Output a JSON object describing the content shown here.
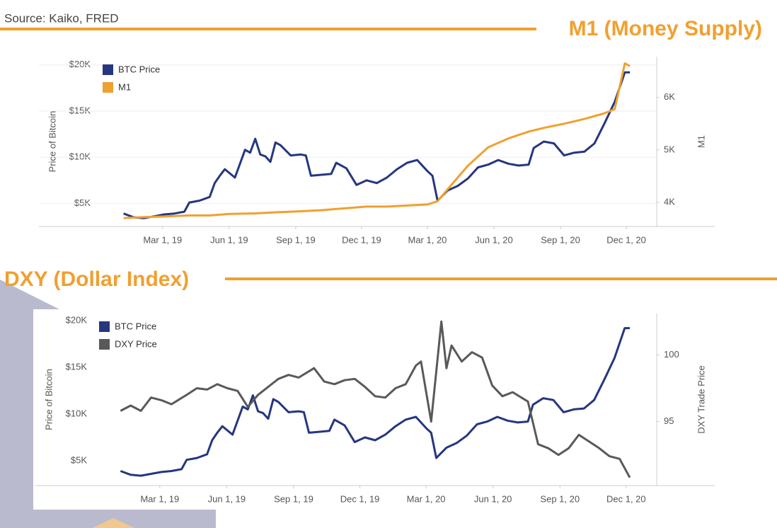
{
  "source": "Source: Kaiko, FRED",
  "chart_data": [
    {
      "type": "line",
      "title": "M1 (Money Supply)",
      "ylabel": "Price of Bitcoin",
      "y2label": "M1",
      "xlim": [
        "2018-09-11",
        "2021-01-12"
      ],
      "xticks": [
        {
          "value": "2019-03-01",
          "label": "Mar 1, 19"
        },
        {
          "value": "2019-06-01",
          "label": "Jun 1, 19"
        },
        {
          "value": "2019-09-01",
          "label": "Sep 1, 19"
        },
        {
          "value": "2019-12-01",
          "label": "Dec 1, 19"
        },
        {
          "value": "2020-03-01",
          "label": "Mar 1, 20"
        },
        {
          "value": "2020-06-01",
          "label": "Jun 1, 20"
        },
        {
          "value": "2020-09-01",
          "label": "Sep 1, 20"
        },
        {
          "value": "2020-12-01",
          "label": "Dec 1, 20"
        }
      ],
      "ylim": [
        2500,
        20900
      ],
      "yticks": [
        {
          "value": 5000,
          "label": "$5K"
        },
        {
          "value": 10000,
          "label": "$10K"
        },
        {
          "value": 15000,
          "label": "$15K"
        },
        {
          "value": 20000,
          "label": "$20K"
        }
      ],
      "y2lim": [
        3540,
        6780
      ],
      "y2ticks": [
        {
          "value": 4000,
          "label": "4K"
        },
        {
          "value": 5000,
          "label": "5K"
        },
        {
          "value": 6000,
          "label": "6K"
        }
      ],
      "grid": true,
      "legend": "top-left",
      "series": [
        {
          "name": "BTC Price",
          "color": "#26367f",
          "x": [
            "2019-01-06",
            "2019-01-20",
            "2019-02-03",
            "2019-02-17",
            "2019-03-03",
            "2019-03-17",
            "2019-03-31",
            "2019-04-07",
            "2019-04-21",
            "2019-05-05",
            "2019-05-12",
            "2019-05-19",
            "2019-05-26",
            "2019-06-09",
            "2019-06-23",
            "2019-06-30",
            "2019-07-07",
            "2019-07-14",
            "2019-07-21",
            "2019-07-28",
            "2019-08-04",
            "2019-08-11",
            "2019-08-25",
            "2019-09-08",
            "2019-09-15",
            "2019-09-22",
            "2019-10-06",
            "2019-10-20",
            "2019-10-27",
            "2019-11-10",
            "2019-11-24",
            "2019-12-08",
            "2019-12-22",
            "2020-01-05",
            "2020-01-19",
            "2020-02-02",
            "2020-02-16",
            "2020-03-01",
            "2020-03-08",
            "2020-03-15",
            "2020-03-29",
            "2020-04-12",
            "2020-04-26",
            "2020-05-10",
            "2020-05-24",
            "2020-06-07",
            "2020-06-21",
            "2020-07-05",
            "2020-07-19",
            "2020-07-26",
            "2020-08-09",
            "2020-08-23",
            "2020-09-06",
            "2020-09-20",
            "2020-10-04",
            "2020-10-18",
            "2020-11-01",
            "2020-11-15",
            "2020-11-29",
            "2020-12-06"
          ],
          "values": [
            3900,
            3500,
            3400,
            3600,
            3800,
            3900,
            4100,
            5100,
            5300,
            5700,
            7200,
            8000,
            8700,
            7800,
            10800,
            10500,
            12000,
            10300,
            10100,
            9500,
            11600,
            11300,
            10200,
            10300,
            10200,
            8000,
            8100,
            8200,
            9400,
            8800,
            7000,
            7500,
            7200,
            7800,
            8700,
            9400,
            9700,
            8500,
            8000,
            5300,
            6400,
            6900,
            7700,
            8900,
            9200,
            9700,
            9300,
            9100,
            9200,
            11000,
            11700,
            11500,
            10200,
            10500,
            10600,
            11500,
            13700,
            16000,
            19200,
            19200
          ]
        },
        {
          "name": "M1",
          "color": "#f0a030",
          "axis": "y2",
          "x": [
            "2019-01-06",
            "2019-02-03",
            "2019-03-03",
            "2019-04-07",
            "2019-05-05",
            "2019-06-02",
            "2019-07-07",
            "2019-08-04",
            "2019-09-08",
            "2019-10-06",
            "2019-11-10",
            "2019-12-08",
            "2020-01-05",
            "2020-02-02",
            "2020-03-01",
            "2020-03-15",
            "2020-03-29",
            "2020-04-26",
            "2020-05-24",
            "2020-06-21",
            "2020-07-19",
            "2020-08-09",
            "2020-09-06",
            "2020-10-04",
            "2020-11-01",
            "2020-11-15",
            "2020-11-29",
            "2020-12-06"
          ],
          "values": [
            3700,
            3720,
            3730,
            3750,
            3750,
            3780,
            3790,
            3810,
            3830,
            3850,
            3890,
            3920,
            3920,
            3940,
            3960,
            4020,
            4250,
            4700,
            5050,
            5220,
            5350,
            5420,
            5500,
            5590,
            5700,
            5780,
            6650,
            6600
          ]
        }
      ]
    },
    {
      "type": "line",
      "title": "DXY (Dollar Index)",
      "ylabel": "Price of Bitcoin",
      "y2label": "DXY Trade Price",
      "xlim": [
        "2018-09-11",
        "2021-01-12"
      ],
      "xticks": [
        {
          "value": "2019-03-01",
          "label": "Mar 1, 19"
        },
        {
          "value": "2019-06-01",
          "label": "Jun 1, 19"
        },
        {
          "value": "2019-09-01",
          "label": "Sep 1, 19"
        },
        {
          "value": "2019-12-01",
          "label": "Dec 1, 19"
        },
        {
          "value": "2020-03-01",
          "label": "Mar 1, 20"
        },
        {
          "value": "2020-06-01",
          "label": "Jun 1, 20"
        },
        {
          "value": "2020-09-01",
          "label": "Sep 1, 20"
        },
        {
          "value": "2020-12-01",
          "label": "Dec 1, 20"
        }
      ],
      "ylim": [
        2350,
        20760
      ],
      "yticks": [
        {
          "value": 5000,
          "label": "$5K"
        },
        {
          "value": 10000,
          "label": "$10K"
        },
        {
          "value": 15000,
          "label": "$15K"
        },
        {
          "value": 20000,
          "label": "$20K"
        }
      ],
      "y2lim": [
        90.2,
        103.1
      ],
      "y2ticks": [
        95,
        100
      ],
      "grid": false,
      "legend": "top-left",
      "series": [
        {
          "name": "BTC Price",
          "color": "#26367f",
          "x": [
            "2019-01-06",
            "2019-01-20",
            "2019-02-03",
            "2019-02-17",
            "2019-03-03",
            "2019-03-17",
            "2019-03-31",
            "2019-04-07",
            "2019-04-21",
            "2019-05-05",
            "2019-05-12",
            "2019-05-19",
            "2019-05-26",
            "2019-06-09",
            "2019-06-23",
            "2019-06-30",
            "2019-07-07",
            "2019-07-14",
            "2019-07-21",
            "2019-07-28",
            "2019-08-04",
            "2019-08-11",
            "2019-08-25",
            "2019-09-08",
            "2019-09-15",
            "2019-09-22",
            "2019-10-06",
            "2019-10-20",
            "2019-10-27",
            "2019-11-10",
            "2019-11-24",
            "2019-12-08",
            "2019-12-22",
            "2020-01-05",
            "2020-01-19",
            "2020-02-02",
            "2020-02-16",
            "2020-03-01",
            "2020-03-08",
            "2020-03-15",
            "2020-03-29",
            "2020-04-12",
            "2020-04-26",
            "2020-05-10",
            "2020-05-24",
            "2020-06-07",
            "2020-06-21",
            "2020-07-05",
            "2020-07-19",
            "2020-07-26",
            "2020-08-09",
            "2020-08-23",
            "2020-09-06",
            "2020-09-20",
            "2020-10-04",
            "2020-10-18",
            "2020-11-01",
            "2020-11-15",
            "2020-11-29",
            "2020-12-06"
          ],
          "values": [
            3900,
            3500,
            3400,
            3600,
            3800,
            3900,
            4100,
            5100,
            5300,
            5700,
            7200,
            8000,
            8700,
            7800,
            10800,
            10500,
            12000,
            10300,
            10100,
            9500,
            11600,
            11300,
            10200,
            10300,
            10200,
            8000,
            8100,
            8200,
            9400,
            8800,
            7000,
            7500,
            7200,
            7800,
            8700,
            9400,
            9700,
            8500,
            8000,
            5300,
            6400,
            6900,
            7700,
            8900,
            9200,
            9700,
            9300,
            9100,
            9200,
            11000,
            11700,
            11500,
            10200,
            10500,
            10600,
            11500,
            13700,
            16000,
            19200,
            19200
          ]
        },
        {
          "name": "DXY Price",
          "color": "#595959",
          "axis": "y2",
          "x": [
            "2019-01-06",
            "2019-01-20",
            "2019-02-03",
            "2019-02-17",
            "2019-03-03",
            "2019-03-17",
            "2019-04-07",
            "2019-04-21",
            "2019-05-05",
            "2019-05-19",
            "2019-06-02",
            "2019-06-16",
            "2019-06-30",
            "2019-07-14",
            "2019-07-28",
            "2019-08-11",
            "2019-08-25",
            "2019-09-08",
            "2019-09-29",
            "2019-10-13",
            "2019-10-27",
            "2019-11-10",
            "2019-11-24",
            "2019-12-08",
            "2019-12-22",
            "2020-01-05",
            "2020-01-19",
            "2020-02-02",
            "2020-02-16",
            "2020-02-23",
            "2020-03-08",
            "2020-03-22",
            "2020-03-29",
            "2020-04-05",
            "2020-04-19",
            "2020-05-03",
            "2020-05-17",
            "2020-05-31",
            "2020-06-14",
            "2020-06-28",
            "2020-07-19",
            "2020-08-02",
            "2020-08-16",
            "2020-08-30",
            "2020-09-13",
            "2020-09-27",
            "2020-10-11",
            "2020-10-25",
            "2020-11-08",
            "2020-11-22",
            "2020-12-06"
          ],
          "values": [
            95.8,
            96.2,
            95.8,
            96.8,
            96.6,
            96.3,
            97.0,
            97.5,
            97.4,
            97.8,
            97.5,
            97.3,
            96.1,
            97.0,
            97.6,
            98.2,
            98.5,
            98.3,
            99.0,
            98.0,
            97.8,
            98.1,
            98.2,
            97.6,
            96.9,
            96.8,
            97.5,
            97.8,
            99.2,
            99.5,
            95.0,
            102.5,
            99.0,
            100.7,
            99.5,
            100.2,
            99.8,
            97.7,
            96.9,
            97.2,
            96.5,
            93.3,
            93.0,
            92.5,
            93.0,
            94.0,
            93.5,
            93.0,
            92.4,
            92.2,
            90.8
          ]
        }
      ]
    }
  ]
}
